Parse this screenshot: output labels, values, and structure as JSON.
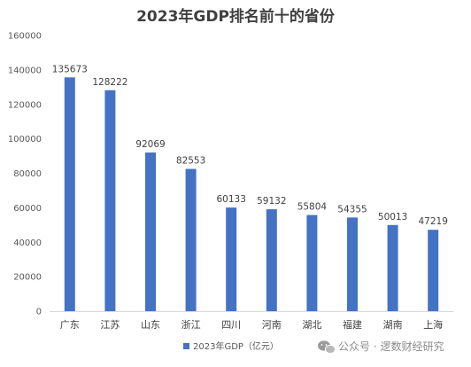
{
  "chart_data": {
    "type": "bar",
    "title": "2023年GDP排名前十的省份",
    "categories": [
      "广东",
      "江苏",
      "山东",
      "浙江",
      "四川",
      "河南",
      "湖北",
      "福建",
      "湖南",
      "上海"
    ],
    "series": [
      {
        "name": "2023年GDP（亿元）",
        "values": [
          135673,
          128222,
          92069,
          82553,
          60133,
          59132,
          55804,
          54355,
          50013,
          47219
        ],
        "color": "#4472C4"
      }
    ],
    "data_labels": [
      "135673",
      "128222",
      "92069",
      "82553",
      "60133",
      "59132",
      "55804",
      "54355",
      "50013",
      "47219"
    ],
    "yticks": [
      "0",
      "20000",
      "40000",
      "60000",
      "80000",
      "100000",
      "120000",
      "140000",
      "160000"
    ],
    "ylim": [
      0,
      160000
    ],
    "grid": false,
    "legend_position": "bottom-left"
  },
  "watermark": {
    "icon": "wechat-icon",
    "text": "公众号 · 逻数财经研究"
  }
}
